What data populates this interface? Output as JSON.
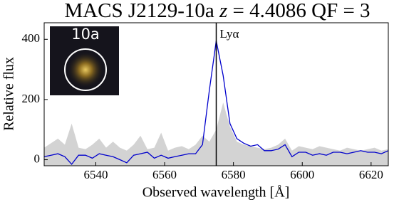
{
  "chart_data": {
    "type": "line",
    "title_parts": [
      "MACS J2129-10a ",
      "z",
      " = 4.4086 QF = 3"
    ],
    "xlabel": "Observed wavelength  [Å]",
    "ylabel": "Relative flux",
    "x": [
      6525,
      6527,
      6529,
      6531,
      6533,
      6535,
      6537,
      6539,
      6541,
      6543,
      6545,
      6547,
      6549,
      6551,
      6553,
      6555,
      6557,
      6559,
      6561,
      6563,
      6565,
      6567,
      6569,
      6571,
      6573,
      6575,
      6577,
      6579,
      6581,
      6583,
      6585,
      6587,
      6589,
      6591,
      6593,
      6595,
      6597,
      6599,
      6601,
      6603,
      6605,
      6607,
      6609,
      6611,
      6613,
      6615,
      6617,
      6619,
      6621,
      6623,
      6625
    ],
    "series": [
      {
        "kind": "area",
        "color": "#d3d3d3",
        "values": [
          40,
          55,
          70,
          50,
          120,
          40,
          35,
          50,
          70,
          40,
          60,
          40,
          30,
          50,
          80,
          35,
          40,
          90,
          30,
          40,
          45,
          35,
          50,
          80,
          60,
          100,
          190,
          110,
          60,
          50,
          45,
          40,
          35,
          40,
          50,
          70,
          30,
          45,
          40,
          35,
          45,
          40,
          35,
          30,
          40,
          35,
          30,
          35,
          40,
          30,
          35
        ]
      },
      {
        "kind": "line",
        "color": "#0000cc",
        "values": [
          10,
          15,
          20,
          10,
          -15,
          15,
          15,
          5,
          20,
          15,
          10,
          0,
          -10,
          15,
          20,
          25,
          5,
          15,
          5,
          10,
          15,
          20,
          20,
          50,
          230,
          395,
          280,
          120,
          70,
          55,
          45,
          50,
          30,
          30,
          35,
          50,
          10,
          25,
          25,
          15,
          20,
          15,
          25,
          25,
          20,
          25,
          30,
          25,
          25,
          20,
          30
        ]
      }
    ],
    "vline": {
      "x": 6575,
      "label": "Lyα",
      "color": "#000000"
    },
    "inset_label": "10a",
    "xlim": [
      6525,
      6625
    ],
    "xticks": [
      6540,
      6560,
      6580,
      6600,
      6620
    ],
    "ylim": [
      -20,
      455
    ],
    "yticks": [
      0,
      200,
      400
    ]
  }
}
